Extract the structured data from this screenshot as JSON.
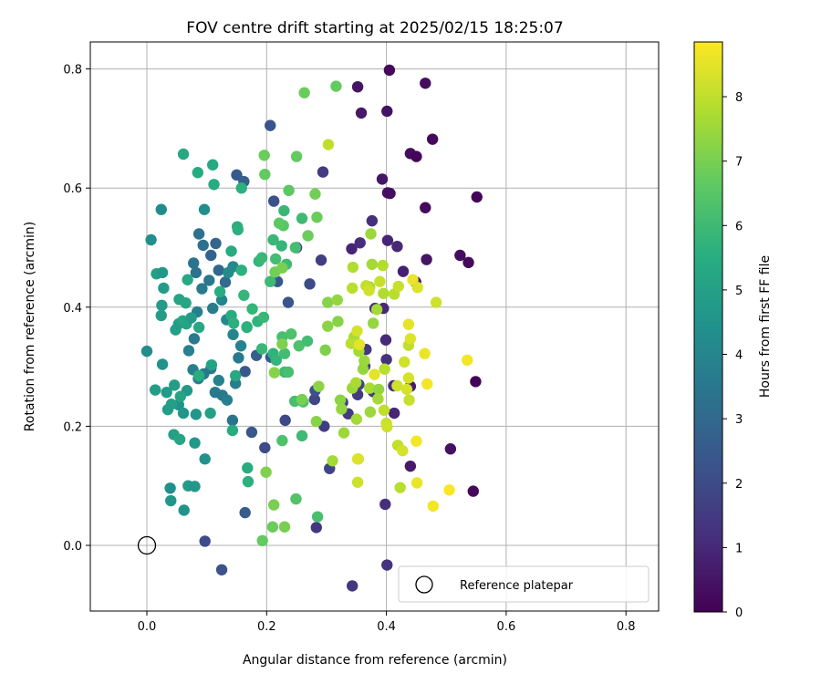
{
  "chart_data": {
    "type": "scatter",
    "title": "FOV centre drift starting at 2025/02/15 18:25:07",
    "xlabel": "Angular distance from reference (arcmin)",
    "ylabel": "Rotation from reference (arcmin)",
    "xlim": [
      -0.1,
      0.85
    ],
    "ylim": [
      -0.11,
      0.84
    ],
    "xticks": [
      0.0,
      0.2,
      0.4,
      0.6,
      0.8
    ],
    "xtick_labels": [
      "0.0",
      "0.2",
      "0.4",
      "0.6",
      "0.8"
    ],
    "yticks": [
      0.0,
      0.2,
      0.4,
      0.6,
      0.8
    ],
    "ytick_labels": [
      "0.0",
      "0.2",
      "0.4",
      "0.6",
      "0.8"
    ],
    "grid": true,
    "colormap": "viridis",
    "colorbar": {
      "label": "Hours from first FF file",
      "range": [
        0,
        8.85
      ],
      "ticks": [
        0,
        1,
        2,
        3,
        4,
        5,
        6,
        7,
        8
      ],
      "tick_labels": [
        "0",
        "1",
        "2",
        "3",
        "4",
        "5",
        "6",
        "7",
        "8"
      ]
    },
    "reference": {
      "x": 0.0,
      "y": 0.0,
      "label": "Reference platepar",
      "marker": "open-circle"
    },
    "legend": {
      "position": "bottom-right",
      "entries": [
        "Reference platepar"
      ]
    },
    "points": [
      [
        0.405,
        0.798,
        0.2
      ],
      [
        0.465,
        0.776,
        0.3
      ],
      [
        0.352,
        0.77,
        0.5
      ],
      [
        0.401,
        0.729,
        0.4
      ],
      [
        0.358,
        0.726,
        0.6
      ],
      [
        0.477,
        0.682,
        0.2
      ],
      [
        0.44,
        0.658,
        0.3
      ],
      [
        0.45,
        0.653,
        0.1
      ],
      [
        0.393,
        0.615,
        0.5
      ],
      [
        0.402,
        0.592,
        0.4
      ],
      [
        0.406,
        0.591,
        0.3
      ],
      [
        0.551,
        0.585,
        0.1
      ],
      [
        0.465,
        0.567,
        0.2
      ],
      [
        0.523,
        0.487,
        0.3
      ],
      [
        0.537,
        0.475,
        0.2
      ],
      [
        0.549,
        0.275,
        0.1
      ],
      [
        0.545,
        0.091,
        0.2
      ],
      [
        0.507,
        0.162,
        0.4
      ],
      [
        0.44,
        0.133,
        0.6
      ],
      [
        0.413,
        0.222,
        0.9
      ],
      [
        0.44,
        0.267,
        0.7
      ],
      [
        0.428,
        0.46,
        0.8
      ],
      [
        0.467,
        0.48,
        0.5
      ],
      [
        0.449,
        0.442,
        0.7
      ],
      [
        0.418,
        0.502,
        1.0
      ],
      [
        0.402,
        0.512,
        0.9
      ],
      [
        0.376,
        0.545,
        1.2
      ],
      [
        0.356,
        0.508,
        1.1
      ],
      [
        0.342,
        0.498,
        0.9
      ],
      [
        0.294,
        0.627,
        1.5
      ],
      [
        0.399,
        0.345,
        1.0
      ],
      [
        0.412,
        0.268,
        1.1
      ],
      [
        0.4,
        0.312,
        1.3
      ],
      [
        0.381,
        0.398,
        1.2
      ],
      [
        0.395,
        0.398,
        1.0
      ],
      [
        0.366,
        0.329,
        1.4
      ],
      [
        0.352,
        0.253,
        1.5
      ],
      [
        0.398,
        0.069,
        1.2
      ],
      [
        0.364,
        0.301,
        1.6
      ],
      [
        0.378,
        0.258,
        1.7
      ],
      [
        0.354,
        0.27,
        1.8
      ],
      [
        0.327,
        0.24,
        1.7
      ],
      [
        0.336,
        0.221,
        1.5
      ],
      [
        0.283,
        0.03,
        1.4
      ],
      [
        0.296,
        0.2,
        1.6
      ],
      [
        0.305,
        0.129,
        1.8
      ],
      [
        0.231,
        0.21,
        1.9
      ],
      [
        0.197,
        0.164,
        2.0
      ],
      [
        0.28,
        0.245,
        1.9
      ],
      [
        0.291,
        0.479,
        1.6
      ],
      [
        0.25,
        0.5,
        1.7
      ],
      [
        0.272,
        0.439,
        2.0
      ],
      [
        0.281,
        0.26,
        2.2
      ],
      [
        0.206,
        0.705,
        2.3
      ],
      [
        0.212,
        0.578,
        2.2
      ],
      [
        0.218,
        0.443,
        2.4
      ],
      [
        0.236,
        0.408,
        2.3
      ],
      [
        0.207,
        0.316,
        2.5
      ],
      [
        0.175,
        0.19,
        2.4
      ],
      [
        0.164,
        0.055,
        2.6
      ],
      [
        0.164,
        0.292,
        2.5
      ],
      [
        0.183,
        0.319,
        2.6
      ],
      [
        0.15,
        0.622,
        2.5
      ],
      [
        0.162,
        0.611,
        2.7
      ],
      [
        0.343,
        -0.068,
        1.4
      ],
      [
        0.401,
        -0.033,
        1.3
      ],
      [
        0.097,
        0.007,
        2.0
      ],
      [
        0.125,
        -0.041,
        2.2
      ],
      [
        0.107,
        0.487,
        2.8
      ],
      [
        0.115,
        0.507,
        2.9
      ],
      [
        0.12,
        0.462,
        3.0
      ],
      [
        0.131,
        0.442,
        3.1
      ],
      [
        0.094,
        0.504,
        3.2
      ],
      [
        0.087,
        0.523,
        3.3
      ],
      [
        0.078,
        0.474,
        3.4
      ],
      [
        0.082,
        0.458,
        3.3
      ],
      [
        0.092,
        0.431,
        3.6
      ],
      [
        0.104,
        0.445,
        3.5
      ],
      [
        0.11,
        0.398,
        3.7
      ],
      [
        0.084,
        0.392,
        3.8
      ],
      [
        0.079,
        0.347,
        3.6
      ],
      [
        0.07,
        0.327,
        3.9
      ],
      [
        0.077,
        0.295,
        3.8
      ],
      [
        0.086,
        0.28,
        3.7
      ],
      [
        0.095,
        0.288,
        3.5
      ],
      [
        0.107,
        0.297,
        3.4
      ],
      [
        0.114,
        0.257,
        3.6
      ],
      [
        0.12,
        0.277,
        3.9
      ],
      [
        0.126,
        0.252,
        3.5
      ],
      [
        0.134,
        0.244,
        3.8
      ],
      [
        0.143,
        0.21,
        3.4
      ],
      [
        0.148,
        0.272,
        3.7
      ],
      [
        0.153,
        0.315,
        3.6
      ],
      [
        0.157,
        0.335,
        3.9
      ],
      [
        0.144,
        0.354,
        4.0
      ],
      [
        0.133,
        0.379,
        4.1
      ],
      [
        0.125,
        0.412,
        4.0
      ],
      [
        0.136,
        0.458,
        4.2
      ],
      [
        0.144,
        0.468,
        4.1
      ],
      [
        0.096,
        0.564,
        4.3
      ],
      [
        0.024,
        0.564,
        4.2
      ],
      [
        0.007,
        0.513,
        4.4
      ],
      [
        0.0,
        0.326,
        4.3
      ],
      [
        0.026,
        0.304,
        4.5
      ],
      [
        0.053,
        0.236,
        4.5
      ],
      [
        0.061,
        0.222,
        4.6
      ],
      [
        0.067,
        0.26,
        4.7
      ],
      [
        0.082,
        0.22,
        4.6
      ],
      [
        0.08,
        0.172,
        4.7
      ],
      [
        0.097,
        0.145,
        4.5
      ],
      [
        0.039,
        0.096,
        4.4
      ],
      [
        0.04,
        0.075,
        4.6
      ],
      [
        0.062,
        0.059,
        4.5
      ],
      [
        0.069,
        0.1,
        4.8
      ],
      [
        0.08,
        0.099,
        4.7
      ],
      [
        0.014,
        0.261,
        4.9
      ],
      [
        0.033,
        0.257,
        4.8
      ],
      [
        0.046,
        0.269,
        4.9
      ],
      [
        0.041,
        0.237,
        5.0
      ],
      [
        0.056,
        0.25,
        5.1
      ],
      [
        0.045,
        0.186,
        5.0
      ],
      [
        0.055,
        0.178,
        5.2
      ],
      [
        0.035,
        0.228,
        4.9
      ],
      [
        0.048,
        0.362,
        5.0
      ],
      [
        0.053,
        0.372,
        4.9
      ],
      [
        0.06,
        0.377,
        5.2
      ],
      [
        0.066,
        0.372,
        5.1
      ],
      [
        0.074,
        0.382,
        4.8
      ],
      [
        0.087,
        0.366,
        5.3
      ],
      [
        0.054,
        0.413,
        5.1
      ],
      [
        0.065,
        0.407,
        5.2
      ],
      [
        0.068,
        0.446,
        5.3
      ],
      [
        0.025,
        0.403,
        4.8
      ],
      [
        0.024,
        0.386,
        4.9
      ],
      [
        0.016,
        0.456,
        5.0
      ],
      [
        0.026,
        0.458,
        4.7
      ],
      [
        0.028,
        0.432,
        4.8
      ],
      [
        0.061,
        0.657,
        5.3
      ],
      [
        0.085,
        0.626,
        5.4
      ],
      [
        0.11,
        0.639,
        5.3
      ],
      [
        0.112,
        0.606,
        5.4
      ],
      [
        0.141,
        0.494,
        5.4
      ],
      [
        0.151,
        0.535,
        5.5
      ],
      [
        0.152,
        0.53,
        5.6
      ],
      [
        0.122,
        0.426,
        5.5
      ],
      [
        0.158,
        0.462,
        5.6
      ],
      [
        0.162,
        0.42,
        5.8
      ],
      [
        0.141,
        0.386,
        5.5
      ],
      [
        0.145,
        0.373,
        5.6
      ],
      [
        0.167,
        0.367,
        5.7
      ],
      [
        0.176,
        0.397,
        5.8
      ],
      [
        0.185,
        0.376,
        5.7
      ],
      [
        0.195,
        0.383,
        5.9
      ],
      [
        0.206,
        0.443,
        6.0
      ],
      [
        0.187,
        0.477,
        5.8
      ],
      [
        0.192,
        0.483,
        5.9
      ],
      [
        0.211,
        0.513,
        5.9
      ],
      [
        0.225,
        0.503,
        5.8
      ],
      [
        0.215,
        0.481,
        6.1
      ],
      [
        0.233,
        0.472,
        6.0
      ],
      [
        0.229,
        0.562,
        5.9
      ],
      [
        0.248,
        0.5,
        6.1
      ],
      [
        0.259,
        0.549,
        6.0
      ],
      [
        0.192,
        0.33,
        5.9
      ],
      [
        0.211,
        0.322,
        5.7
      ],
      [
        0.216,
        0.311,
        5.8
      ],
      [
        0.23,
        0.322,
        6.1
      ],
      [
        0.23,
        0.291,
        6.0
      ],
      [
        0.236,
        0.291,
        6.2
      ],
      [
        0.226,
        0.35,
        6.2
      ],
      [
        0.241,
        0.355,
        6.3
      ],
      [
        0.254,
        0.335,
        6.3
      ],
      [
        0.268,
        0.343,
        6.1
      ],
      [
        0.247,
        0.242,
        6.2
      ],
      [
        0.261,
        0.241,
        6.3
      ],
      [
        0.259,
        0.184,
        6.0
      ],
      [
        0.226,
        0.176,
        6.3
      ],
      [
        0.285,
        0.048,
        6.2
      ],
      [
        0.249,
        0.078,
        6.4
      ],
      [
        0.106,
        0.222,
        5.0
      ],
      [
        0.108,
        0.303,
        5.1
      ],
      [
        0.087,
        0.285,
        5.5
      ],
      [
        0.158,
        0.6,
        5.6
      ],
      [
        0.143,
        0.193,
        5.4
      ],
      [
        0.169,
        0.107,
        5.6
      ],
      [
        0.168,
        0.13,
        5.5
      ],
      [
        0.148,
        0.285,
        5.3
      ],
      [
        0.167,
        0.366,
        5.6
      ],
      [
        0.237,
        0.596,
        6.6
      ],
      [
        0.228,
        0.537,
        6.5
      ],
      [
        0.221,
        0.541,
        6.6
      ],
      [
        0.197,
        0.623,
        6.7
      ],
      [
        0.196,
        0.655,
        6.8
      ],
      [
        0.25,
        0.653,
        6.7
      ],
      [
        0.263,
        0.76,
        6.8
      ],
      [
        0.316,
        0.771,
        6.7
      ],
      [
        0.284,
        0.551,
        6.8
      ],
      [
        0.281,
        0.59,
        6.9
      ],
      [
        0.269,
        0.52,
        6.8
      ],
      [
        0.214,
        0.459,
        6.9
      ],
      [
        0.226,
        0.466,
        7.0
      ],
      [
        0.193,
        0.008,
        6.7
      ],
      [
        0.21,
        0.031,
        6.8
      ],
      [
        0.23,
        0.031,
        7.0
      ],
      [
        0.212,
        0.068,
        7.0
      ],
      [
        0.199,
        0.123,
        7.1
      ],
      [
        0.213,
        0.29,
        7.2
      ],
      [
        0.226,
        0.338,
        7.1
      ],
      [
        0.259,
        0.245,
        7.0
      ],
      [
        0.283,
        0.208,
        7.2
      ],
      [
        0.287,
        0.267,
        7.3
      ],
      [
        0.298,
        0.328,
        7.1
      ],
      [
        0.302,
        0.408,
        7.2
      ],
      [
        0.302,
        0.368,
        7.3
      ],
      [
        0.318,
        0.412,
        7.4
      ],
      [
        0.319,
        0.376,
        7.2
      ],
      [
        0.323,
        0.244,
        7.3
      ],
      [
        0.325,
        0.229,
        7.4
      ],
      [
        0.329,
        0.189,
        7.5
      ],
      [
        0.31,
        0.142,
        7.6
      ],
      [
        0.35,
        0.212,
        7.6
      ],
      [
        0.353,
        0.145,
        7.8
      ],
      [
        0.343,
        0.264,
        7.5
      ],
      [
        0.349,
        0.273,
        7.7
      ],
      [
        0.354,
        0.326,
        7.6
      ],
      [
        0.361,
        0.296,
        7.4
      ],
      [
        0.363,
        0.31,
        7.5
      ],
      [
        0.372,
        0.264,
        7.7
      ],
      [
        0.373,
        0.224,
        7.5
      ],
      [
        0.387,
        0.262,
        7.4
      ],
      [
        0.386,
        0.246,
        7.6
      ],
      [
        0.378,
        0.373,
        7.4
      ],
      [
        0.384,
        0.396,
        7.6
      ],
      [
        0.395,
        0.423,
        7.8
      ],
      [
        0.346,
        0.35,
        7.7
      ],
      [
        0.341,
        0.339,
        7.9
      ],
      [
        0.372,
        0.434,
        7.7
      ],
      [
        0.376,
        0.472,
        7.6
      ],
      [
        0.374,
        0.523,
        7.5
      ],
      [
        0.394,
        0.47,
        7.8
      ],
      [
        0.413,
        0.422,
        7.9
      ],
      [
        0.42,
        0.435,
        8.1
      ],
      [
        0.344,
        0.467,
        7.8
      ],
      [
        0.343,
        0.432,
        7.9
      ],
      [
        0.366,
        0.436,
        8.0
      ],
      [
        0.371,
        0.428,
        8.2
      ],
      [
        0.389,
        0.443,
        8.1
      ],
      [
        0.397,
        0.296,
        7.9
      ],
      [
        0.4,
        0.205,
        8.1
      ],
      [
        0.401,
        0.199,
        8.2
      ],
      [
        0.396,
        0.227,
        8.0
      ],
      [
        0.418,
        0.268,
        8.2
      ],
      [
        0.423,
        0.097,
        7.9
      ],
      [
        0.419,
        0.168,
        8.0
      ],
      [
        0.427,
        0.159,
        8.3
      ],
      [
        0.438,
        0.244,
        8.1
      ],
      [
        0.437,
        0.281,
        8.3
      ],
      [
        0.43,
        0.308,
        8.2
      ],
      [
        0.437,
        0.336,
        8.0
      ],
      [
        0.44,
        0.347,
        8.4
      ],
      [
        0.437,
        0.371,
        8.5
      ],
      [
        0.444,
        0.446,
        8.6
      ],
      [
        0.452,
        0.433,
        8.4
      ],
      [
        0.483,
        0.408,
        8.2
      ],
      [
        0.464,
        0.322,
        8.6
      ],
      [
        0.468,
        0.271,
        8.7
      ],
      [
        0.451,
        0.105,
        8.6
      ],
      [
        0.45,
        0.175,
        8.7
      ],
      [
        0.478,
        0.066,
        8.7
      ],
      [
        0.505,
        0.093,
        8.8
      ],
      [
        0.535,
        0.311,
        8.7
      ],
      [
        0.38,
        0.287,
        8.5
      ],
      [
        0.434,
        0.262,
        8.3
      ],
      [
        0.352,
        0.145,
        8.4
      ],
      [
        0.352,
        0.106,
        8.2
      ],
      [
        0.355,
        0.337,
        8.5
      ],
      [
        0.351,
        0.36,
        8.3
      ],
      [
        0.303,
        0.673,
        8.0
      ]
    ]
  }
}
